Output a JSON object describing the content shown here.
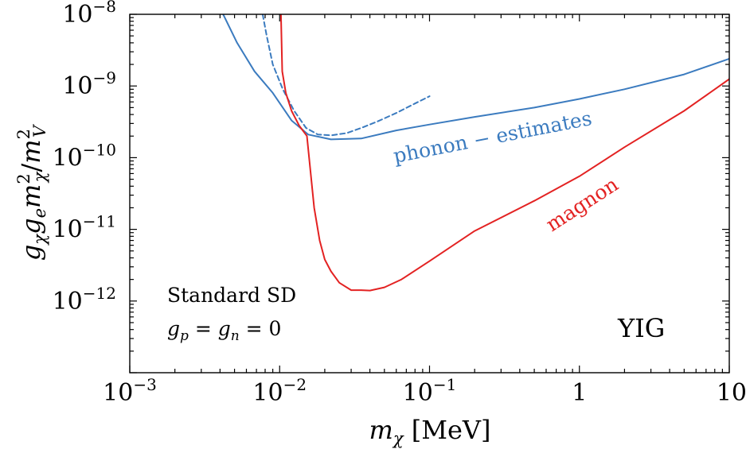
{
  "chart_data": {
    "type": "line",
    "x_scale": "log",
    "y_scale": "log",
    "xlim": [
      0.001,
      10
    ],
    "ylim": [
      1e-13,
      1e-08
    ],
    "xlabel": "m_χ [MeV]",
    "ylabel": "g_χ g_e m_χ^2/m_V^2",
    "x_ticks": [
      {
        "value": 0.001,
        "base": "10",
        "exp": "−3"
      },
      {
        "value": 0.01,
        "base": "10",
        "exp": "−2"
      },
      {
        "value": 0.1,
        "base": "10",
        "exp": "−1"
      },
      {
        "value": 1,
        "base": "1",
        "exp": ""
      },
      {
        "value": 10,
        "base": "10",
        "exp": ""
      }
    ],
    "y_ticks": [
      {
        "value": 1e-12,
        "base": "10",
        "exp": "−12"
      },
      {
        "value": 1e-11,
        "base": "10",
        "exp": "−11"
      },
      {
        "value": 1e-10,
        "base": "10",
        "exp": "−10"
      },
      {
        "value": 1e-09,
        "base": "10",
        "exp": "−9"
      },
      {
        "value": 1e-08,
        "base": "10",
        "exp": "−8"
      }
    ],
    "series": [
      {
        "name": "phonon − estimates",
        "color": "#3b7bbf",
        "style": "solid",
        "x": [
          0.0042,
          0.0052,
          0.0068,
          0.009,
          0.012,
          0.0155,
          0.022,
          0.035,
          0.06,
          0.1,
          0.2,
          0.5,
          1,
          2,
          5,
          10
        ],
        "y": [
          1e-08,
          4e-09,
          1.6e-09,
          8e-10,
          3.3e-10,
          2.1e-10,
          1.8e-10,
          1.85e-10,
          2.4e-10,
          2.9e-10,
          3.7e-10,
          5e-10,
          6.6e-10,
          9e-10,
          1.45e-09,
          2.4e-09
        ]
      },
      {
        "name": "",
        "color": "#3b7bbf",
        "style": "dashed",
        "x": [
          0.0077,
          0.0082,
          0.009,
          0.0105,
          0.0125,
          0.015,
          0.018,
          0.022,
          0.028,
          0.035,
          0.045,
          0.06,
          0.08,
          0.1
        ],
        "y": [
          1e-08,
          5e-09,
          2e-09,
          9e-10,
          4.5e-10,
          2.6e-10,
          2.1e-10,
          2.05e-10,
          2.2e-10,
          2.6e-10,
          3.2e-10,
          4.2e-10,
          5.7e-10,
          7.2e-10
        ]
      },
      {
        "name": "magnon",
        "color": "#e32222",
        "style": "solid",
        "x": [
          0.0102,
          0.0104,
          0.011,
          0.012,
          0.0135,
          0.0152,
          0.017,
          0.0185,
          0.02,
          0.022,
          0.025,
          0.03,
          0.035,
          0.04,
          0.05,
          0.065,
          0.1,
          0.2,
          0.5,
          1,
          2,
          5,
          10
        ],
        "y": [
          1e-08,
          1.6e-09,
          8e-10,
          4.5e-10,
          2.8e-10,
          2e-10,
          2e-11,
          7e-12,
          3.8e-12,
          2.6e-12,
          1.8e-12,
          1.42e-12,
          1.42e-12,
          1.4e-12,
          1.55e-12,
          2e-12,
          3.6e-12,
          9.5e-12,
          2.5e-11,
          5.5e-11,
          1.4e-10,
          4.5e-10,
          1.25e-09
        ]
      }
    ],
    "annotations": {
      "line1": "Standard SD",
      "line2": "g_p = g_n = 0",
      "material": "YIG"
    },
    "curve_labels": {
      "phonon": "phonon − estimates",
      "magnon": "magnon"
    }
  }
}
